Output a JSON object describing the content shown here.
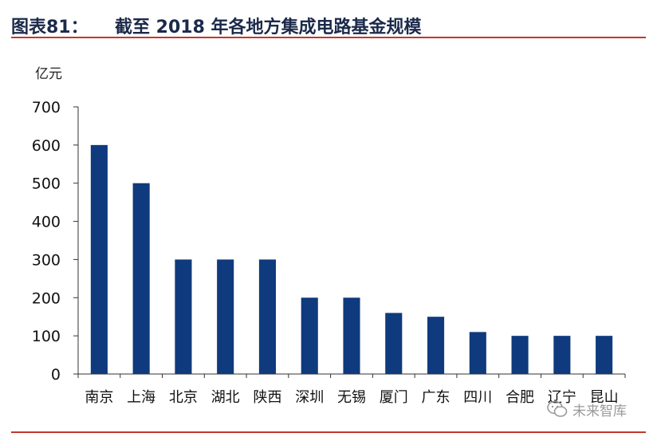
{
  "header": {
    "figure_label": "图表81：",
    "title": "截至 2018 年各地方集成电路基金规模"
  },
  "watermark": {
    "text": "未来智库",
    "icon": "wechat-icon"
  },
  "colors": {
    "bar": "#0f3a7d",
    "axis": "#333333",
    "rule": "#c0392b"
  },
  "chart_data": {
    "type": "bar",
    "title": "截至 2018 年各地方集成电路基金规模",
    "ylabel": "亿元",
    "xlabel": "",
    "categories": [
      "南京",
      "上海",
      "北京",
      "湖北",
      "陕西",
      "深圳",
      "无锡",
      "厦门",
      "广东",
      "四川",
      "合肥",
      "辽宁",
      "昆山"
    ],
    "values": [
      600,
      500,
      300,
      300,
      300,
      200,
      200,
      160,
      150,
      110,
      100,
      100,
      100
    ],
    "ylim": [
      0,
      700
    ],
    "yticks": [
      0,
      100,
      200,
      300,
      400,
      500,
      600,
      700
    ],
    "grid": false,
    "legend": "none"
  }
}
